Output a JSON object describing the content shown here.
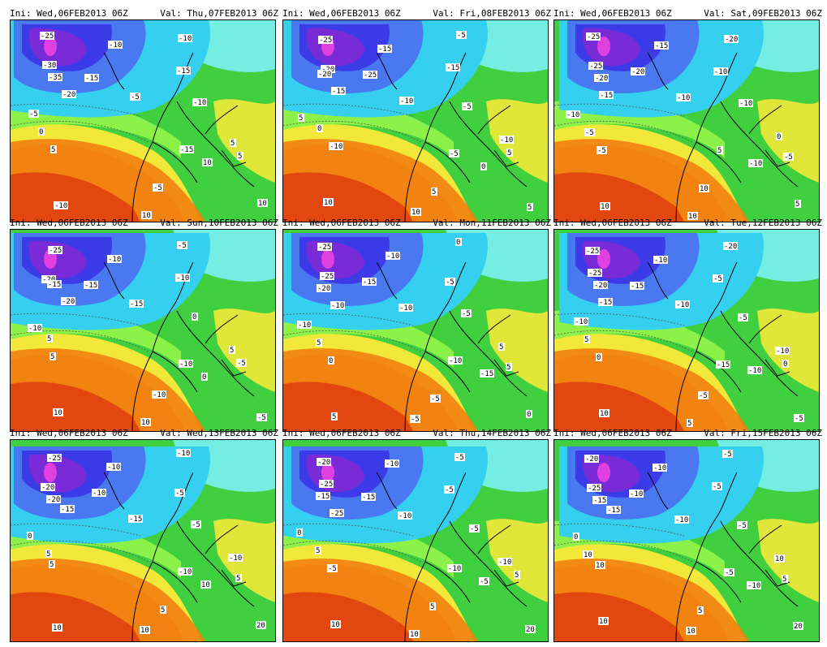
{
  "panels": [
    {
      "ini": "Ini: Wed,06FEB2013 06Z",
      "val": "Val: Thu,07FEB2013 06Z",
      "labels": [
        "-25",
        "-30",
        "-35",
        "-20",
        "-15",
        "-10",
        "-5",
        "-15",
        "-10",
        "-10",
        "-5",
        "0",
        "5",
        "5",
        "-15",
        "-5",
        "-10",
        "10",
        "10",
        "10",
        "5"
      ]
    },
    {
      "ini": "Ini: Wed,06FEB2013 06Z",
      "val": "Val: Fri,08FEB2013 06Z",
      "labels": [
        "-25",
        "-20",
        "-20",
        "-15",
        "-25",
        "-15",
        "-10",
        "-15",
        "-5",
        "-5",
        "5",
        "0",
        "-10",
        "-10",
        "-5",
        "5",
        "10",
        "10",
        "5",
        "0",
        "5"
      ]
    },
    {
      "ini": "Ini: Wed,06FEB2013 06Z",
      "val": "Val: Sat,09FEB2013 06Z",
      "labels": [
        "-25",
        "-25",
        "-20",
        "-15",
        "-20",
        "-15",
        "-10",
        "-10",
        "-20",
        "-10",
        "-10",
        "-5",
        "-5",
        "0",
        "5",
        "10",
        "10",
        "10",
        "5",
        "-10",
        "-5"
      ]
    },
    {
      "ini": "Ini: Wed,06FEB2013 06Z",
      "val": "Val: Sun,10FEB2013 06Z",
      "labels": [
        "-25",
        "-20",
        "-15",
        "-20",
        "-15",
        "-10",
        "-15",
        "-10",
        "-5",
        "0",
        "-10",
        "5",
        "5",
        "5",
        "-10",
        "-10",
        "10",
        "10",
        "-5",
        "0",
        "-5"
      ]
    },
    {
      "ini": "Ini: Wed,06FEB2013 06Z",
      "val": "Val: Mon,11FEB2013 06Z",
      "labels": [
        "-25",
        "-25",
        "-20",
        "-10",
        "-15",
        "-10",
        "-10",
        "-5",
        "0",
        "-5",
        "-10",
        "5",
        "0",
        "5",
        "-10",
        "-5",
        "5",
        "-5",
        "0",
        "-15",
        "5"
      ]
    },
    {
      "ini": "Ini: Wed,06FEB2013 06Z",
      "val": "Val: Tue,12FEB2013 06Z",
      "labels": [
        "-25",
        "-25",
        "-20",
        "-15",
        "-15",
        "-10",
        "-10",
        "-5",
        "-20",
        "-5",
        "-10",
        "5",
        "0",
        "-10",
        "-15",
        "-5",
        "10",
        "5",
        "-5",
        "-10",
        "0"
      ]
    },
    {
      "ini": "Ini: Wed,06FEB2013 06Z",
      "val": "Val: Wed,13FEB2013 06Z",
      "labels": [
        "-25",
        "-20",
        "-20",
        "-15",
        "-10",
        "-10",
        "-15",
        "-5",
        "-10",
        "-5",
        "0",
        "5",
        "5",
        "-10",
        "-10",
        "5",
        "10",
        "10",
        "20",
        "10",
        "5"
      ]
    },
    {
      "ini": "Ini: Wed,06FEB2013 06Z",
      "val": "Val: Thu,14FEB2013 06Z",
      "labels": [
        "-20",
        "-25",
        "-15",
        "-25",
        "-15",
        "-10",
        "-10",
        "-5",
        "-5",
        "-5",
        "0",
        "5",
        "-5",
        "-10",
        "-10",
        "5",
        "10",
        "10",
        "20",
        "-5",
        "5"
      ]
    },
    {
      "ini": "Ini: Wed,06FEB2013 06Z",
      "val": "Val: Fri,15FEB2013 06Z",
      "labels": [
        "-20",
        "-25",
        "-15",
        "-15",
        "-10",
        "-10",
        "-10",
        "-5",
        "-5",
        "-5",
        "0",
        "10",
        "10",
        "10",
        "-5",
        "5",
        "10",
        "10",
        "20",
        "-10",
        "5"
      ]
    }
  ],
  "palette": {
    "violet": "#7a2bd8",
    "deepblue": "#3b3be8",
    "blue": "#4a78f0",
    "cyan": "#35d0f0",
    "lightcyan": "#7af0f5",
    "green": "#3fcf3f",
    "lightgreen": "#8cf24a",
    "yellow": "#f2e83a",
    "orange": "#f5a623",
    "darkorange": "#f28010",
    "red": "#e04010",
    "magenta": "#e040e0"
  }
}
